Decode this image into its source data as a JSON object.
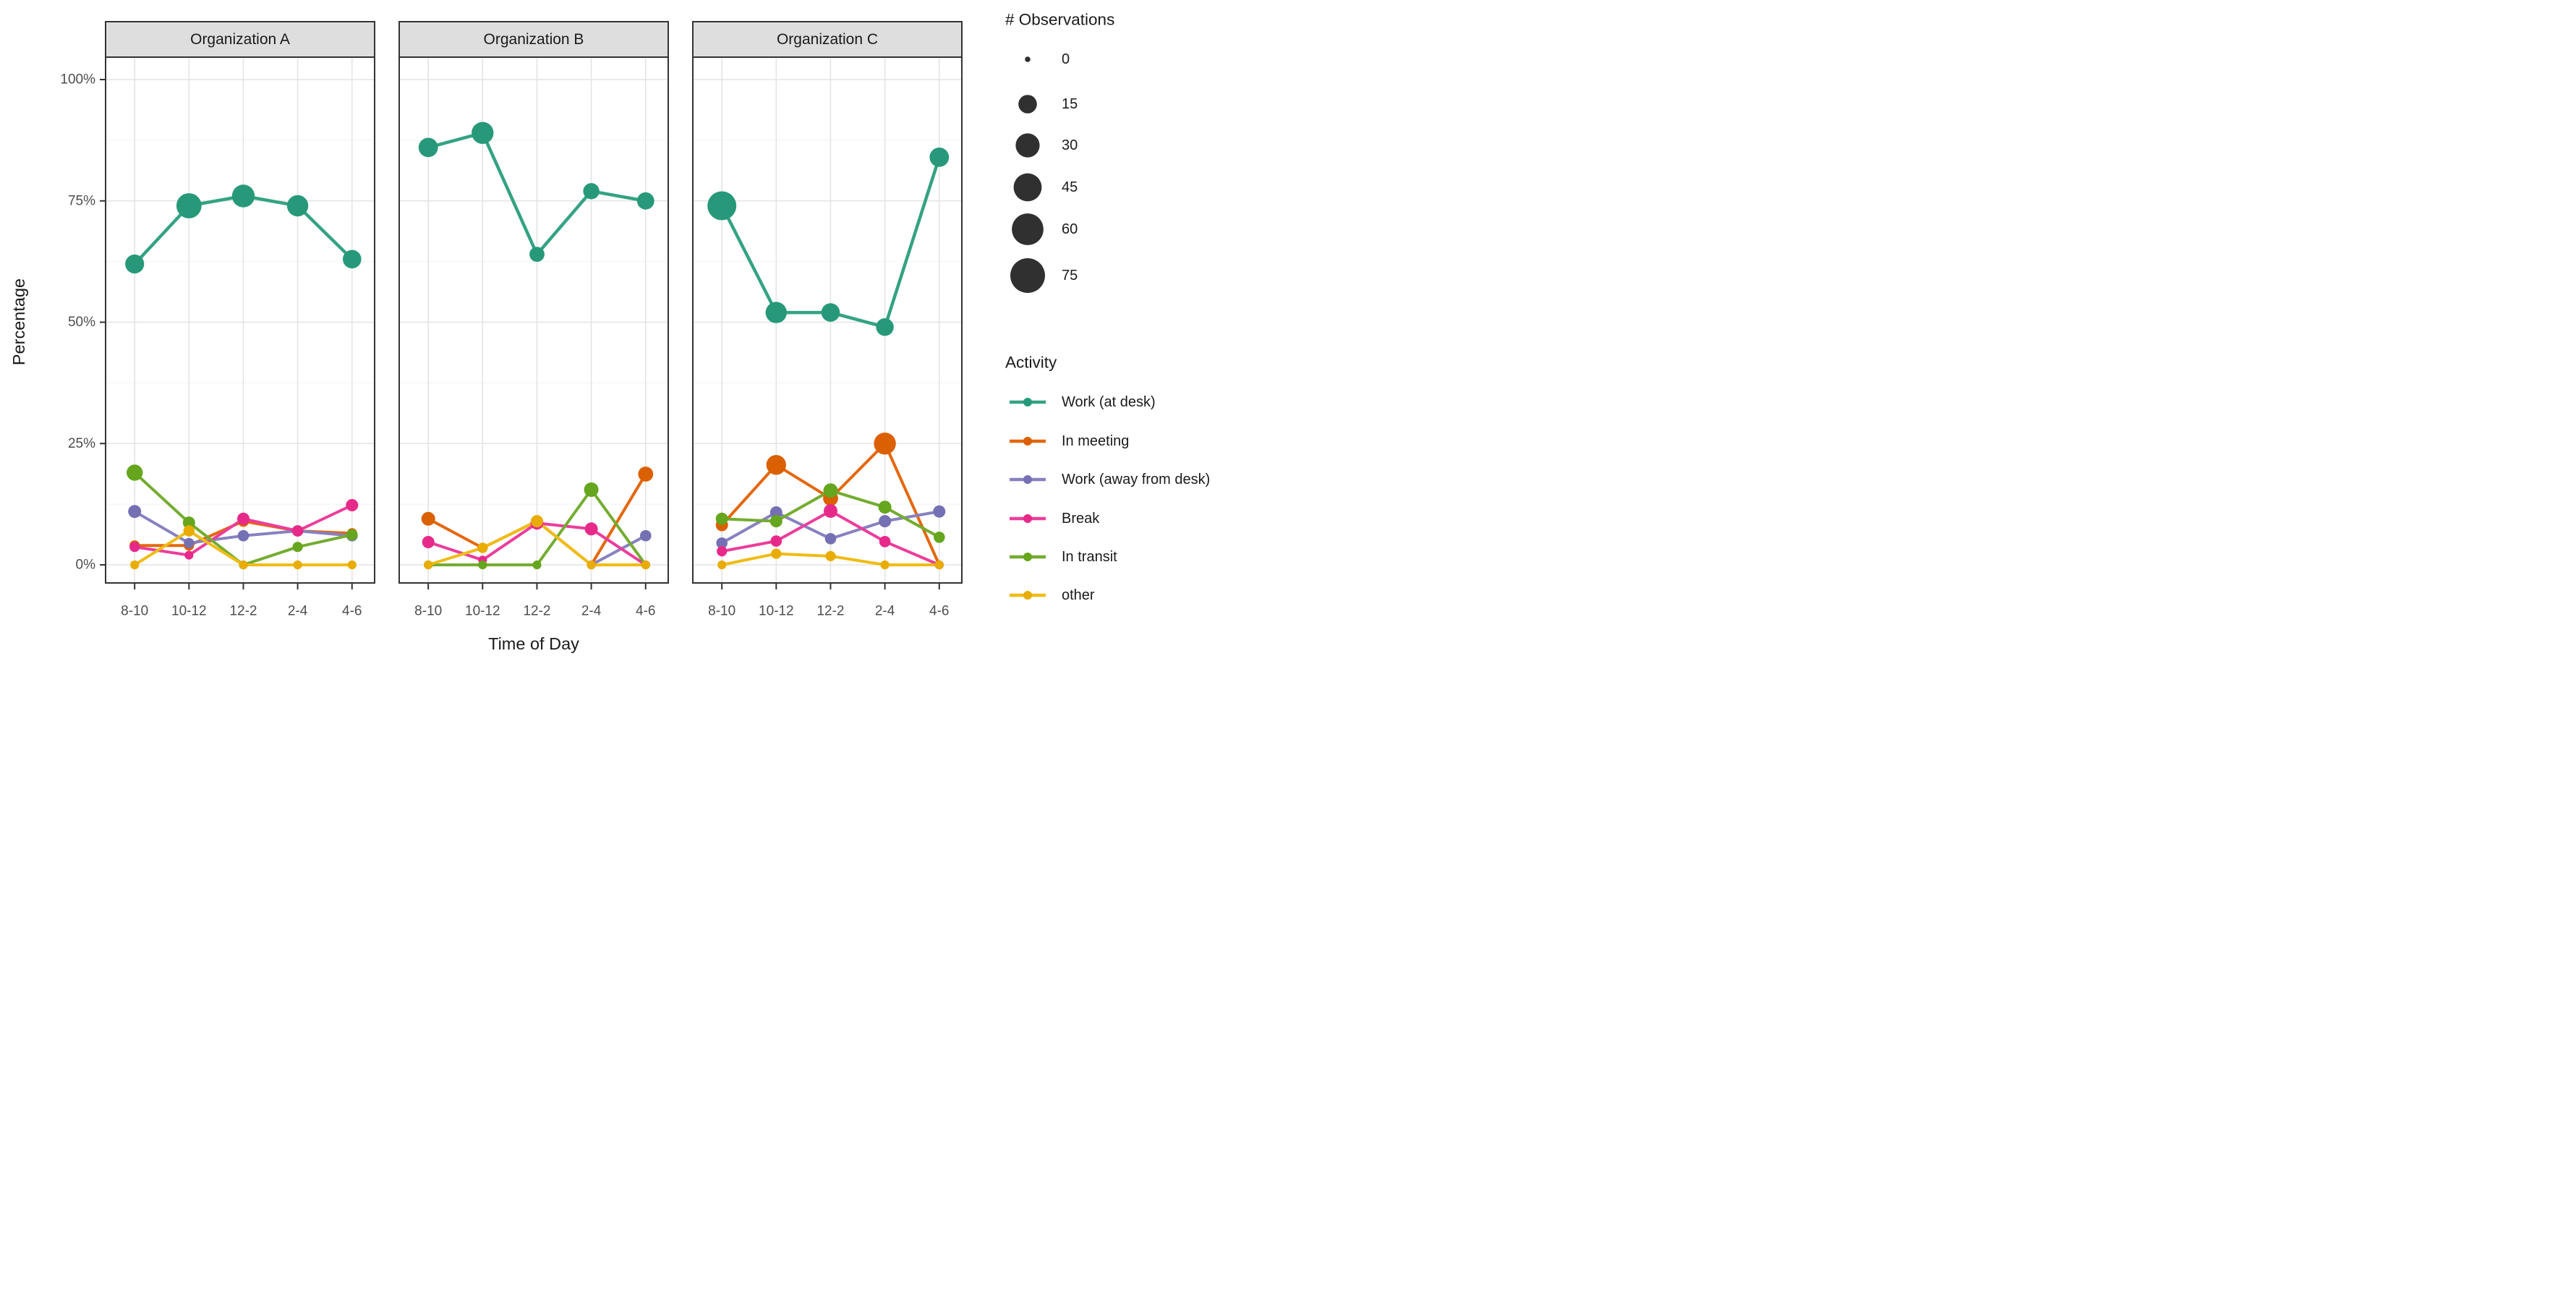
{
  "y_axis": {
    "title": "Percentage",
    "ticks": [
      "100%",
      "75%",
      "50%",
      "25%",
      "0%"
    ],
    "tick_values": [
      100,
      75,
      50,
      25,
      0
    ]
  },
  "x_axis": {
    "title": "Time of Day"
  },
  "size_legend": {
    "title": "# Observations",
    "labels": [
      "0",
      "15",
      "30",
      "45",
      "60",
      "75"
    ],
    "values": [
      0,
      15,
      30,
      45,
      60,
      75
    ],
    "circle_color": "#303030"
  },
  "activity_legend": {
    "title": "Activity"
  },
  "style": {
    "background": "#FFFFFF",
    "strip_bg": "#DEDEDE",
    "panel_border": "#333333",
    "axis_text_color": "#4D4D4D",
    "title_color": "#1A1A1A",
    "grid_major": "#E4E4E4",
    "grid_minor": "#F2F2F2"
  },
  "chart_data": {
    "type": "line",
    "title": "",
    "xlabel": "Time of Day",
    "ylabel": "Percentage",
    "ylim": [
      0,
      100
    ],
    "grid": true,
    "legend_position": "right",
    "x_categories": [
      "8-10",
      "10-12",
      "12-2",
      "2-4",
      "4-6"
    ],
    "y_major_gridlines": [
      0,
      25,
      50,
      75,
      100
    ],
    "y_minor_gridlines": [
      12.5,
      37.5,
      62.5,
      87.5
    ],
    "size_scale": {
      "name": "# Observations",
      "breaks": [
        0,
        15,
        30,
        45,
        60,
        75
      ]
    },
    "activities": [
      {
        "name": "Work (at desk)",
        "line_color": "#34A284",
        "point_color": "#27997A"
      },
      {
        "name": "In meeting",
        "line_color": "#E4670D",
        "point_color": "#DA6002"
      },
      {
        "name": "Work (away from desk)",
        "line_color": "#8781C1",
        "point_color": "#7570B3"
      },
      {
        "name": "Break",
        "line_color": "#EC3D9B",
        "point_color": "#E7298A"
      },
      {
        "name": "In transit",
        "line_color": "#74AC30",
        "point_color": "#66A61E"
      },
      {
        "name": "other",
        "line_color": "#EFBC13",
        "point_color": "#E8AC04"
      }
    ],
    "facets": [
      {
        "label": "Organization A",
        "series": [
          {
            "activity": "Work (at desk)",
            "percent": [
              62,
              74,
              76,
              74,
              63
            ],
            "n_obs": [
              16,
              34,
              26,
              22,
              15
            ]
          },
          {
            "activity": "In meeting",
            "percent": [
              4,
              4,
              9,
              7,
              6.5
            ],
            "n_obs": [
              2,
              2,
              3,
              3,
              2
            ]
          },
          {
            "activity": "Work (away from desk)",
            "percent": [
              11,
              4.5,
              6,
              7,
              6
            ],
            "n_obs": [
              5,
              2,
              3,
              3,
              3
            ]
          },
          {
            "activity": "Break",
            "percent": [
              3.7,
              2,
              9.5,
              7,
              12.3
            ],
            "n_obs": [
              2,
              1,
              4,
              3,
              4
            ]
          },
          {
            "activity": "In transit",
            "percent": [
              19,
              8.7,
              0,
              3.7,
              6.2
            ],
            "n_obs": [
              10,
              4,
              1,
              2,
              3
            ]
          },
          {
            "activity": "other",
            "percent": [
              0,
              7,
              0,
              0,
              0
            ],
            "n_obs": [
              1,
              3,
              1,
              1,
              1
            ]
          }
        ]
      },
      {
        "label": "Organization B",
        "series": [
          {
            "activity": "Work (at desk)",
            "percent": [
              86,
              89,
              64,
              77,
              75
            ],
            "n_obs": [
              17,
              24,
              8,
              10,
              12
            ]
          },
          {
            "activity": "In meeting",
            "percent": [
              9.5,
              3.5,
              9,
              0,
              18.7
            ],
            "n_obs": [
              6,
              2,
              3,
              1,
              8
            ]
          },
          {
            "activity": "Work (away from desk)",
            "percent": [
              null,
              null,
              null,
              0,
              6
            ],
            "n_obs": [
              null,
              null,
              null,
              1,
              3
            ]
          },
          {
            "activity": "Break",
            "percent": [
              4.7,
              1,
              8.6,
              7.4,
              0
            ],
            "n_obs": [
              4,
              1,
              5,
              5,
              1
            ]
          },
          {
            "activity": "In transit",
            "percent": [
              0,
              0,
              0,
              15.5,
              0
            ],
            "n_obs": [
              1,
              1,
              1,
              7,
              1
            ]
          },
          {
            "activity": "other",
            "percent": [
              0,
              3.5,
              9,
              0,
              0
            ],
            "n_obs": [
              1,
              2,
              4,
              1,
              1
            ]
          }
        ]
      },
      {
        "label": "Organization C",
        "series": [
          {
            "activity": "Work (at desk)",
            "percent": [
              74,
              52,
              52,
              49,
              84
            ],
            "n_obs": [
              48,
              22,
              15,
              13,
              17
            ]
          },
          {
            "activity": "In meeting",
            "percent": [
              8.2,
              20.6,
              13.7,
              25,
              0
            ],
            "n_obs": [
              4,
              18,
              8,
              24,
              1
            ]
          },
          {
            "activity": "Work (away from desk)",
            "percent": [
              4.5,
              10.8,
              5.4,
              9,
              11
            ],
            "n_obs": [
              3,
              4,
              3,
              4,
              4
            ]
          },
          {
            "activity": "Break",
            "percent": [
              2.8,
              4.9,
              11.1,
              4.8,
              0
            ],
            "n_obs": [
              2,
              3,
              6,
              3,
              1
            ]
          },
          {
            "activity": "In transit",
            "percent": [
              9.5,
              9,
              15.3,
              11.9,
              5.7
            ],
            "n_obs": [
              4,
              4,
              7,
              5,
              3
            ]
          },
          {
            "activity": "other",
            "percent": [
              0,
              2.3,
              1.8,
              0,
              0
            ],
            "n_obs": [
              1,
              2,
              2,
              1,
              1
            ]
          }
        ]
      }
    ]
  }
}
